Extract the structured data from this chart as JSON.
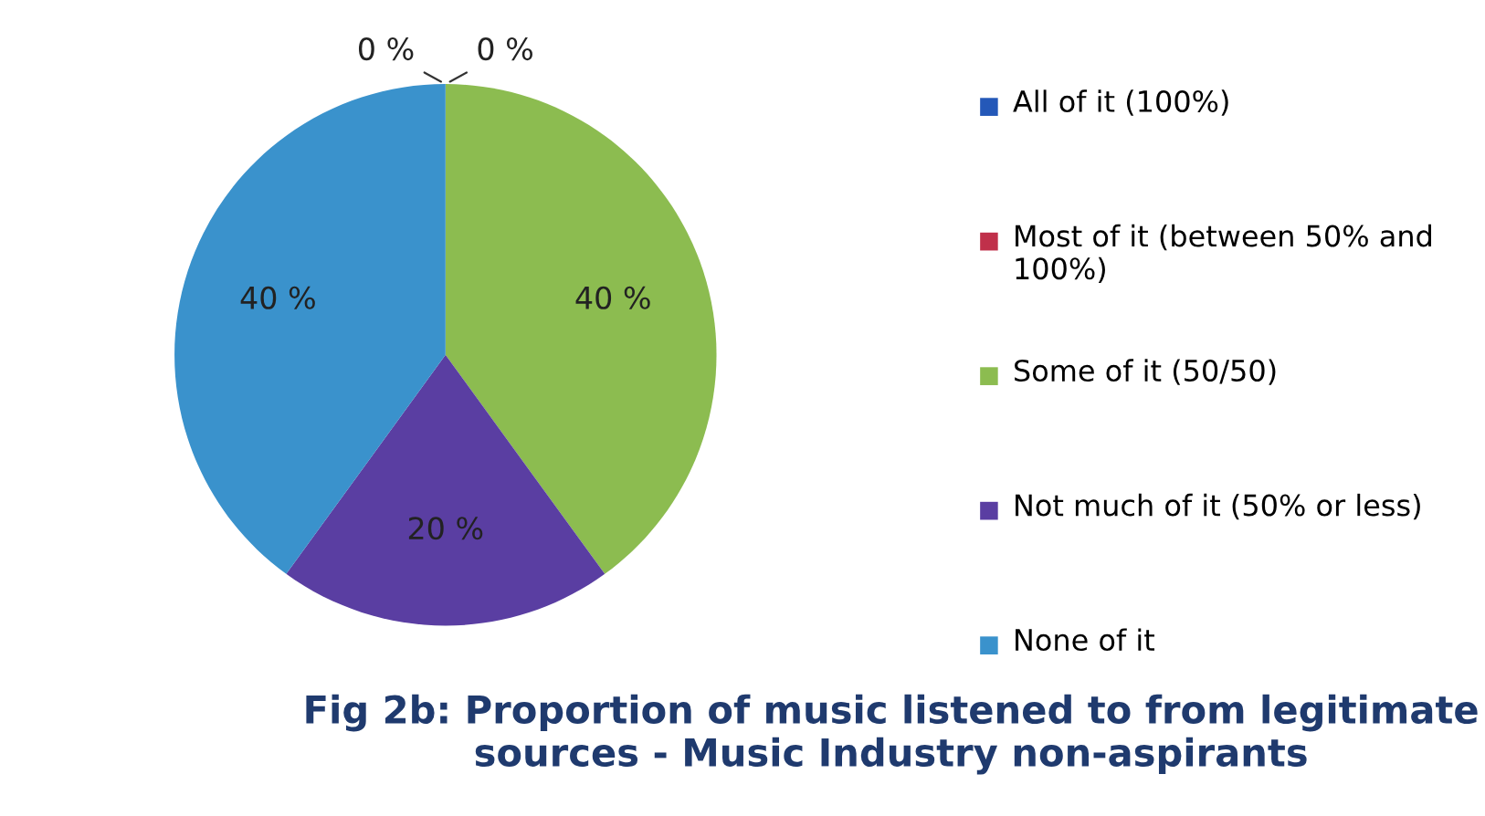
{
  "chart_data": {
    "type": "pie",
    "title": "Fig 2b: Proportion of music listened to from legitimate sources - Music Industry non-aspirants",
    "categories": [
      "All of it (100%)",
      "Most of it (between 50% and 100%)",
      "Some of it (50/50)",
      "Not much of it (50% or less)",
      "None of it"
    ],
    "values": [
      0,
      0,
      40,
      20,
      40
    ],
    "colors": [
      "#2458b8",
      "#c0304a",
      "#8cbc50",
      "#5a3ea2",
      "#3a92cc"
    ],
    "value_labels": [
      "0 %",
      "0 %",
      "40 %",
      "20 %",
      "40 %"
    ],
    "legend": "right"
  }
}
